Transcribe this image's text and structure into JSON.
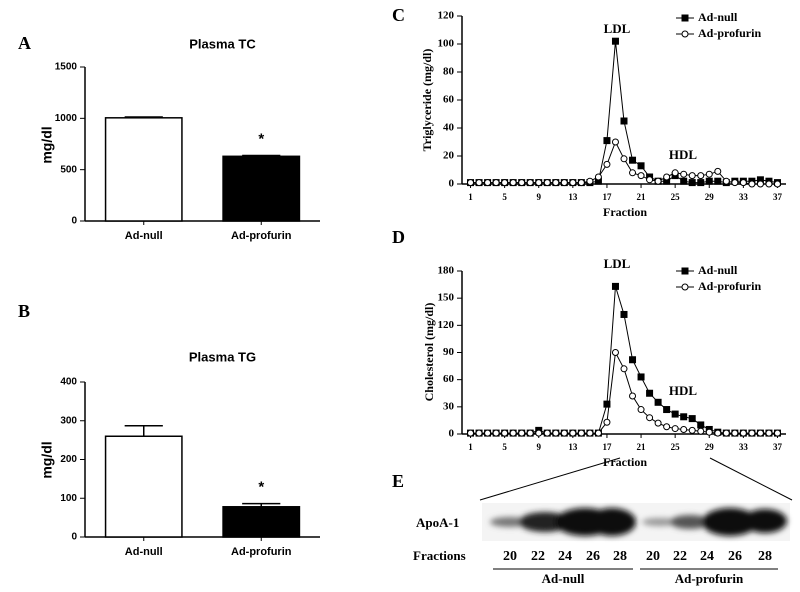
{
  "chart_data": [
    {
      "type": "bar",
      "panel": "A",
      "title": "Plasma TC",
      "y_label": "mg/dl",
      "categories": [
        "Ad-null",
        "Ad-profurin"
      ],
      "values": [
        1005,
        630
      ],
      "errors": [
        8,
        8
      ],
      "colors": [
        "#ffffff",
        "#000000"
      ],
      "annotation": "*",
      "ylim": [
        0,
        1500
      ],
      "yticks": [
        0,
        500,
        1000,
        1500
      ]
    },
    {
      "type": "bar",
      "panel": "B",
      "title": "Plasma TG",
      "y_label": "mg/dl",
      "categories": [
        "Ad-null",
        "Ad-profurin"
      ],
      "values": [
        260,
        78
      ],
      "errors": [
        27,
        8
      ],
      "colors": [
        "#ffffff",
        "#000000"
      ],
      "annotation": "*",
      "ylim": [
        0,
        400
      ],
      "yticks": [
        0,
        100,
        200,
        300,
        400
      ]
    },
    {
      "type": "line",
      "panel": "C",
      "y_label": "Triglyceride (mg/dl)",
      "x_label": "Fraction",
      "annotations": [
        "LDL",
        "HDL"
      ],
      "x": [
        1,
        2,
        3,
        4,
        5,
        6,
        7,
        8,
        9,
        10,
        11,
        12,
        13,
        14,
        15,
        16,
        17,
        18,
        19,
        20,
        21,
        22,
        23,
        24,
        25,
        26,
        27,
        28,
        29,
        30,
        31,
        32,
        33,
        34,
        35,
        36,
        37
      ],
      "series": [
        {
          "name": "Ad-null",
          "color": "#000000",
          "marker": "square",
          "values": [
            1,
            1,
            1,
            1,
            1,
            1,
            1,
            1,
            1,
            1,
            1,
            1,
            1,
            1,
            1,
            2,
            31,
            102,
            45,
            17,
            13,
            5,
            2,
            2,
            6,
            2,
            1,
            1,
            2,
            2,
            1,
            2,
            2,
            2,
            3,
            2,
            1
          ]
        },
        {
          "name": "Ad-profurin",
          "color": "#000000",
          "marker": "circle",
          "values": [
            1,
            1,
            1,
            1,
            1,
            1,
            1,
            1,
            1,
            1,
            1,
            1,
            1,
            1,
            2,
            5,
            14,
            30,
            18,
            8,
            6,
            3,
            2,
            5,
            8,
            7,
            6,
            6,
            7,
            9,
            2,
            1,
            1,
            0,
            0,
            0,
            0
          ]
        }
      ],
      "xlim": [
        0,
        38
      ],
      "xticks": [
        1,
        5,
        9,
        13,
        17,
        21,
        25,
        29,
        33,
        37
      ],
      "ylim": [
        0,
        120
      ],
      "yticks": [
        0,
        20,
        40,
        60,
        80,
        100,
        120
      ]
    },
    {
      "type": "line",
      "panel": "D",
      "y_label": "Cholesterol (mg/dl)",
      "x_label": "Fraction",
      "annotations": [
        "LDL",
        "HDL"
      ],
      "x": [
        1,
        2,
        3,
        4,
        5,
        6,
        7,
        8,
        9,
        10,
        11,
        12,
        13,
        14,
        15,
        16,
        17,
        18,
        19,
        20,
        21,
        22,
        23,
        24,
        25,
        26,
        27,
        28,
        29,
        30,
        31,
        32,
        33,
        34,
        35,
        36,
        37
      ],
      "series": [
        {
          "name": "Ad-null",
          "color": "#000000",
          "marker": "square",
          "values": [
            1,
            1,
            1,
            1,
            1,
            1,
            1,
            1,
            4,
            1,
            1,
            1,
            1,
            1,
            1,
            1,
            33,
            163,
            132,
            82,
            63,
            45,
            35,
            27,
            22,
            19,
            17,
            10,
            5,
            2,
            1,
            1,
            1,
            1,
            1,
            1,
            1
          ]
        },
        {
          "name": "Ad-profurin",
          "color": "#000000",
          "marker": "circle",
          "values": [
            1,
            1,
            1,
            1,
            1,
            1,
            1,
            1,
            1,
            1,
            1,
            1,
            1,
            1,
            1,
            1,
            13,
            90,
            72,
            42,
            27,
            18,
            12,
            8,
            6,
            5,
            4,
            3,
            2,
            1,
            1,
            1,
            1,
            1,
            1,
            1,
            1
          ]
        }
      ],
      "xlim": [
        0,
        38
      ],
      "xticks": [
        1,
        5,
        9,
        13,
        17,
        21,
        25,
        29,
        33,
        37
      ],
      "ylim": [
        0,
        180
      ],
      "yticks": [
        0,
        30,
        60,
        90,
        120,
        150,
        180
      ]
    }
  ],
  "blot": {
    "panel": "E",
    "row_label": "ApoA-1",
    "fractions_label": "Fractions",
    "groups": [
      {
        "name": "Ad-null",
        "lanes": [
          20,
          22,
          24,
          26,
          28
        ]
      },
      {
        "name": "Ad-profurin",
        "lanes": [
          20,
          22,
          24,
          26,
          28
        ]
      }
    ]
  }
}
